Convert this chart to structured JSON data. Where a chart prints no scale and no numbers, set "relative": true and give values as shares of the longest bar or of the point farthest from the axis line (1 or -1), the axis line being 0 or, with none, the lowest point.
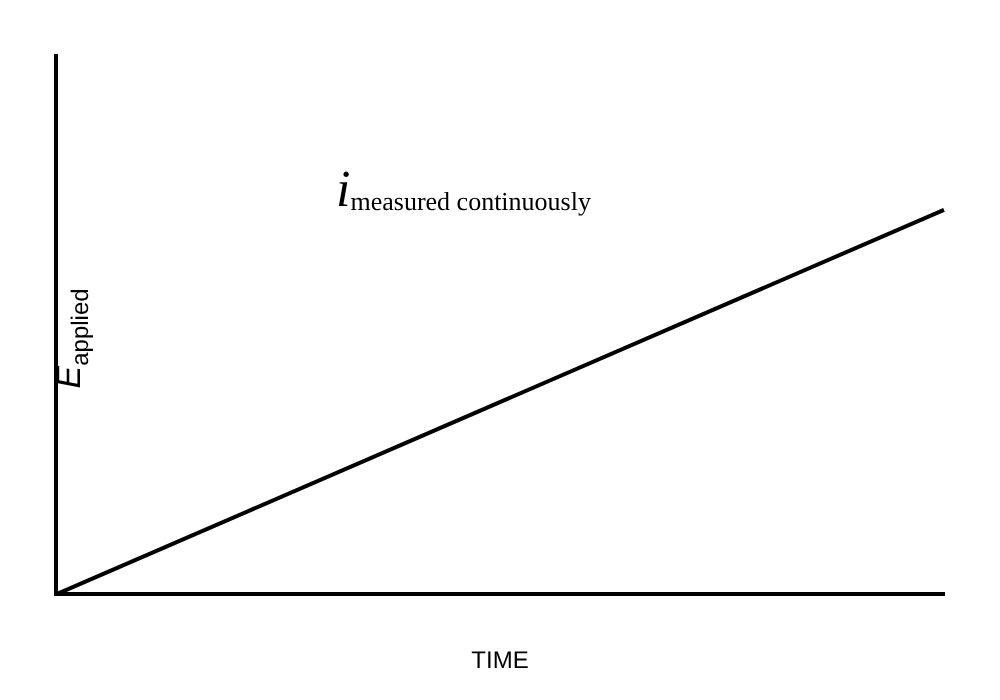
{
  "chart_data": {
    "type": "line",
    "relative": true,
    "xlabel": "TIME",
    "ylabel": "E$_{applied}$",
    "annotations": [
      "i$_{measured continuously}$"
    ],
    "categories": [
      null,
      null
    ],
    "series": [
      {
        "color": "#000000",
        "values": [
          0,
          1
        ]
      }
    ],
    "grid": false,
    "legend": false,
    "marker": "none",
    "line_style": "solid"
  }
}
